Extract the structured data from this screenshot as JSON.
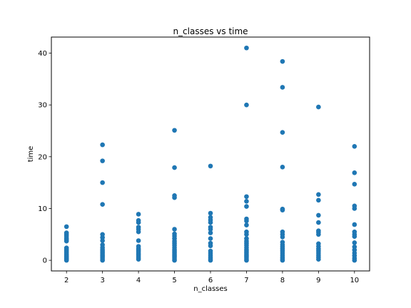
{
  "chart_data": {
    "type": "scatter",
    "title": "n_classes vs time",
    "xlabel": "n_classes",
    "ylabel": "time",
    "xlim": [
      1.58,
      10.42
    ],
    "ylim": [
      -2.05,
      43.1
    ],
    "xticks": [
      2,
      3,
      4,
      5,
      6,
      7,
      8,
      9,
      10
    ],
    "yticks": [
      0,
      10,
      20,
      30,
      40
    ],
    "grid": false,
    "marker_color": "#1f77b4",
    "series": [
      {
        "points": [
          {
            "x": 2,
            "y": 0.0
          },
          {
            "x": 2,
            "y": 0.2
          },
          {
            "x": 2,
            "y": 0.4
          },
          {
            "x": 2,
            "y": 0.6
          },
          {
            "x": 2,
            "y": 0.8
          },
          {
            "x": 2,
            "y": 1.0
          },
          {
            "x": 2,
            "y": 1.2
          },
          {
            "x": 2,
            "y": 1.5
          },
          {
            "x": 2,
            "y": 1.8
          },
          {
            "x": 2,
            "y": 2.1
          },
          {
            "x": 2,
            "y": 2.4
          },
          {
            "x": 2,
            "y": 3.7
          },
          {
            "x": 2,
            "y": 4.0
          },
          {
            "x": 2,
            "y": 4.3
          },
          {
            "x": 2,
            "y": 4.7
          },
          {
            "x": 2,
            "y": 5.0
          },
          {
            "x": 2,
            "y": 5.3
          },
          {
            "x": 2,
            "y": 6.5
          },
          {
            "x": 3,
            "y": 0.0
          },
          {
            "x": 3,
            "y": 0.3
          },
          {
            "x": 3,
            "y": 0.6
          },
          {
            "x": 3,
            "y": 0.9
          },
          {
            "x": 3,
            "y": 1.2
          },
          {
            "x": 3,
            "y": 1.5
          },
          {
            "x": 3,
            "y": 1.8
          },
          {
            "x": 3,
            "y": 2.1
          },
          {
            "x": 3,
            "y": 2.5
          },
          {
            "x": 3,
            "y": 3.0
          },
          {
            "x": 3,
            "y": 3.8
          },
          {
            "x": 3,
            "y": 4.4
          },
          {
            "x": 3,
            "y": 5.0
          },
          {
            "x": 3,
            "y": 10.8
          },
          {
            "x": 3,
            "y": 15.0
          },
          {
            "x": 3,
            "y": 19.2
          },
          {
            "x": 3,
            "y": 22.3
          },
          {
            "x": 4,
            "y": 0.2
          },
          {
            "x": 4,
            "y": 0.5
          },
          {
            "x": 4,
            "y": 0.8
          },
          {
            "x": 4,
            "y": 1.1
          },
          {
            "x": 4,
            "y": 1.4
          },
          {
            "x": 4,
            "y": 1.7
          },
          {
            "x": 4,
            "y": 2.0
          },
          {
            "x": 4,
            "y": 2.3
          },
          {
            "x": 4,
            "y": 2.7
          },
          {
            "x": 4,
            "y": 3.8
          },
          {
            "x": 4,
            "y": 5.5
          },
          {
            "x": 4,
            "y": 6.0
          },
          {
            "x": 4,
            "y": 6.4
          },
          {
            "x": 4,
            "y": 7.3
          },
          {
            "x": 4,
            "y": 7.7
          },
          {
            "x": 4,
            "y": 8.9
          },
          {
            "x": 5,
            "y": 0.0
          },
          {
            "x": 5,
            "y": 0.3
          },
          {
            "x": 5,
            "y": 0.6
          },
          {
            "x": 5,
            "y": 0.9
          },
          {
            "x": 5,
            "y": 1.2
          },
          {
            "x": 5,
            "y": 1.5
          },
          {
            "x": 5,
            "y": 1.8
          },
          {
            "x": 5,
            "y": 2.1
          },
          {
            "x": 5,
            "y": 2.5
          },
          {
            "x": 5,
            "y": 2.9
          },
          {
            "x": 5,
            "y": 3.3
          },
          {
            "x": 5,
            "y": 3.7
          },
          {
            "x": 5,
            "y": 4.2
          },
          {
            "x": 5,
            "y": 4.7
          },
          {
            "x": 5,
            "y": 5.1
          },
          {
            "x": 5,
            "y": 6.0
          },
          {
            "x": 5,
            "y": 12.1
          },
          {
            "x": 5,
            "y": 12.5
          },
          {
            "x": 5,
            "y": 17.9
          },
          {
            "x": 5,
            "y": 25.1
          },
          {
            "x": 6,
            "y": 0.0
          },
          {
            "x": 6,
            "y": 0.3
          },
          {
            "x": 6,
            "y": 0.6
          },
          {
            "x": 6,
            "y": 1.0
          },
          {
            "x": 6,
            "y": 1.4
          },
          {
            "x": 6,
            "y": 1.8
          },
          {
            "x": 6,
            "y": 2.8
          },
          {
            "x": 6,
            "y": 3.3
          },
          {
            "x": 6,
            "y": 4.2
          },
          {
            "x": 6,
            "y": 5.3
          },
          {
            "x": 6,
            "y": 6.0
          },
          {
            "x": 6,
            "y": 6.4
          },
          {
            "x": 6,
            "y": 7.3
          },
          {
            "x": 6,
            "y": 7.8
          },
          {
            "x": 6,
            "y": 8.3
          },
          {
            "x": 6,
            "y": 9.1
          },
          {
            "x": 6,
            "y": 18.2
          },
          {
            "x": 7,
            "y": 0.0
          },
          {
            "x": 7,
            "y": 0.3
          },
          {
            "x": 7,
            "y": 0.6
          },
          {
            "x": 7,
            "y": 0.9
          },
          {
            "x": 7,
            "y": 1.2
          },
          {
            "x": 7,
            "y": 1.5
          },
          {
            "x": 7,
            "y": 1.8
          },
          {
            "x": 7,
            "y": 2.1
          },
          {
            "x": 7,
            "y": 2.5
          },
          {
            "x": 7,
            "y": 2.9
          },
          {
            "x": 7,
            "y": 3.3
          },
          {
            "x": 7,
            "y": 3.7
          },
          {
            "x": 7,
            "y": 4.2
          },
          {
            "x": 7,
            "y": 5.0
          },
          {
            "x": 7,
            "y": 5.5
          },
          {
            "x": 7,
            "y": 6.8
          },
          {
            "x": 7,
            "y": 7.6
          },
          {
            "x": 7,
            "y": 8.0
          },
          {
            "x": 7,
            "y": 10.4
          },
          {
            "x": 7,
            "y": 11.4
          },
          {
            "x": 7,
            "y": 12.3
          },
          {
            "x": 7,
            "y": 30.0
          },
          {
            "x": 7,
            "y": 41.0
          },
          {
            "x": 8,
            "y": 0.0
          },
          {
            "x": 8,
            "y": 0.3
          },
          {
            "x": 8,
            "y": 0.6
          },
          {
            "x": 8,
            "y": 1.0
          },
          {
            "x": 8,
            "y": 1.4
          },
          {
            "x": 8,
            "y": 1.8
          },
          {
            "x": 8,
            "y": 2.2
          },
          {
            "x": 8,
            "y": 2.6
          },
          {
            "x": 8,
            "y": 3.0
          },
          {
            "x": 8,
            "y": 3.5
          },
          {
            "x": 8,
            "y": 4.5
          },
          {
            "x": 8,
            "y": 5.0
          },
          {
            "x": 8,
            "y": 5.5
          },
          {
            "x": 8,
            "y": 9.7
          },
          {
            "x": 8,
            "y": 9.9
          },
          {
            "x": 8,
            "y": 18.0
          },
          {
            "x": 8,
            "y": 24.7
          },
          {
            "x": 8,
            "y": 33.4
          },
          {
            "x": 8,
            "y": 38.4
          },
          {
            "x": 9,
            "y": 0.2
          },
          {
            "x": 9,
            "y": 0.6
          },
          {
            "x": 9,
            "y": 1.0
          },
          {
            "x": 9,
            "y": 1.4
          },
          {
            "x": 9,
            "y": 1.8
          },
          {
            "x": 9,
            "y": 2.2
          },
          {
            "x": 9,
            "y": 2.7
          },
          {
            "x": 9,
            "y": 3.2
          },
          {
            "x": 9,
            "y": 5.0
          },
          {
            "x": 9,
            "y": 5.4
          },
          {
            "x": 9,
            "y": 5.7
          },
          {
            "x": 9,
            "y": 7.3
          },
          {
            "x": 9,
            "y": 8.7
          },
          {
            "x": 9,
            "y": 11.6
          },
          {
            "x": 9,
            "y": 12.7
          },
          {
            "x": 9,
            "y": 29.6
          },
          {
            "x": 10,
            "y": 0.0
          },
          {
            "x": 10,
            "y": 0.4
          },
          {
            "x": 10,
            "y": 0.9
          },
          {
            "x": 10,
            "y": 1.4
          },
          {
            "x": 10,
            "y": 2.0
          },
          {
            "x": 10,
            "y": 2.6
          },
          {
            "x": 10,
            "y": 3.4
          },
          {
            "x": 10,
            "y": 4.6
          },
          {
            "x": 10,
            "y": 5.0
          },
          {
            "x": 10,
            "y": 5.5
          },
          {
            "x": 10,
            "y": 6.9
          },
          {
            "x": 10,
            "y": 10.0
          },
          {
            "x": 10,
            "y": 10.5
          },
          {
            "x": 10,
            "y": 14.7
          },
          {
            "x": 10,
            "y": 16.9
          },
          {
            "x": 10,
            "y": 22.0
          }
        ]
      }
    ]
  }
}
